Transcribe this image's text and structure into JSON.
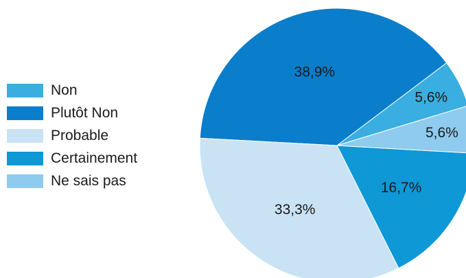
{
  "chart_data": {
    "type": "pie",
    "categories": [
      "Non",
      "Plutôt Non",
      "Probable",
      "Certainement",
      "Ne sais pas"
    ],
    "values": [
      5.6,
      38.9,
      33.3,
      16.7,
      5.6
    ],
    "labels": [
      "5,6%",
      "38,9%",
      "33,3%",
      "16,7%",
      "5,6%"
    ],
    "colors": [
      "#3aaee0",
      "#0a7ecb",
      "#c9e3f5",
      "#0e98d6",
      "#8ecbee"
    ],
    "legend_position": "left"
  }
}
